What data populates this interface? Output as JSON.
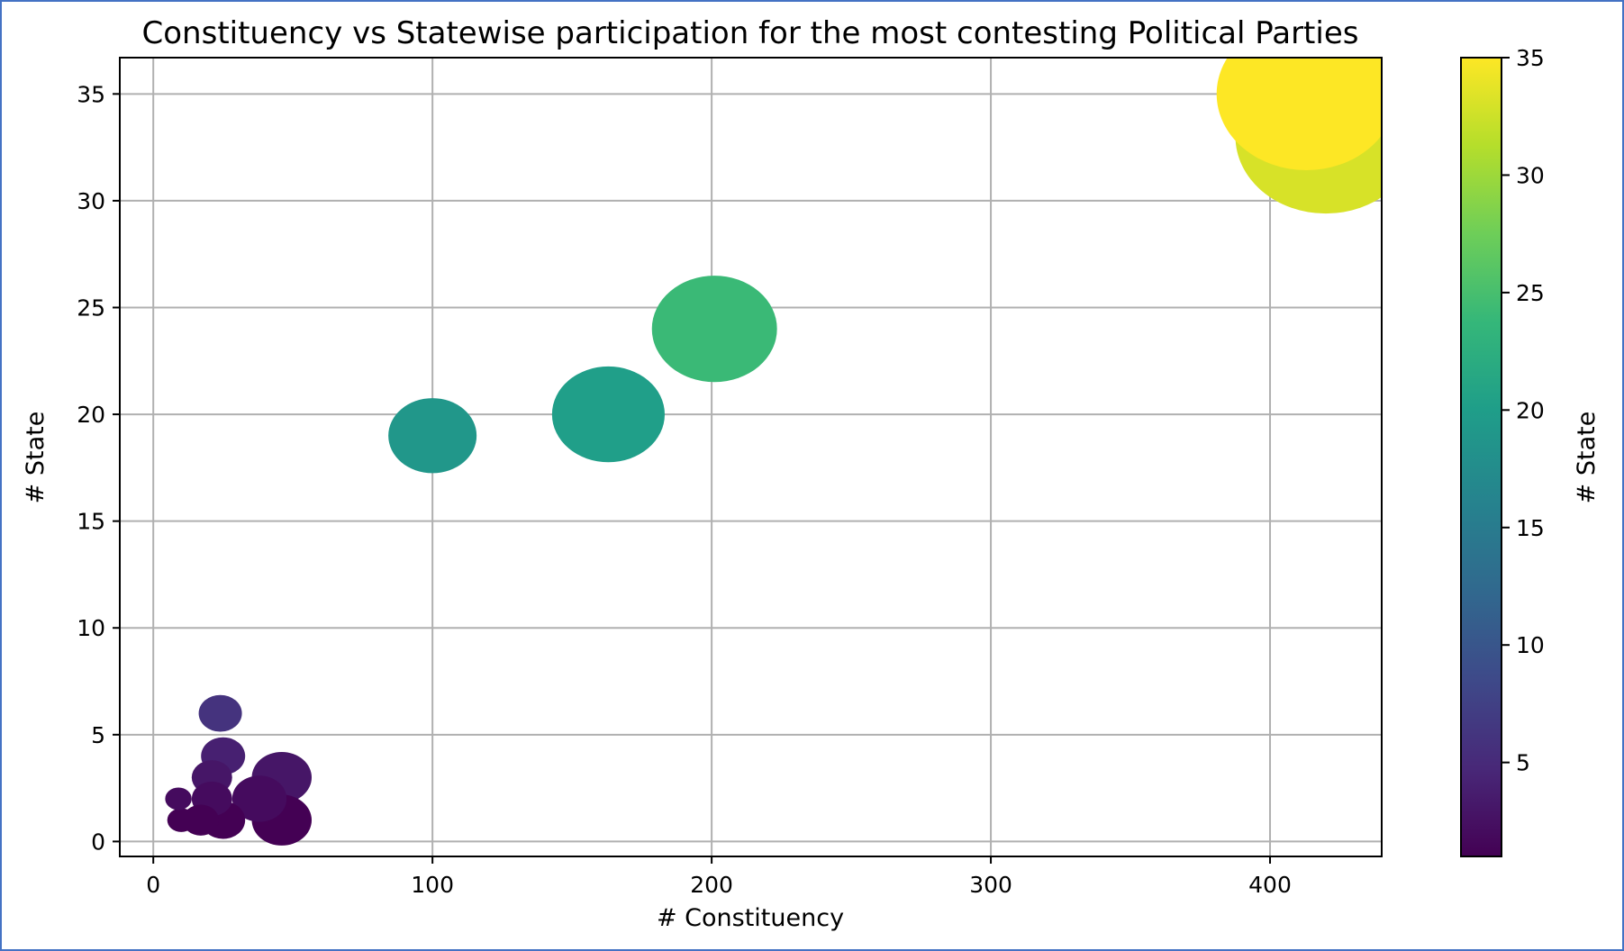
{
  "chart_data": {
    "type": "scatter",
    "title": "Constituency vs Statewise participation for the most contesting Political Parties",
    "xlabel": "# Constituency",
    "ylabel": "# State",
    "xlim": [
      -12,
      440
    ],
    "ylim": [
      -0.7,
      36.7
    ],
    "xticks": [
      0,
      100,
      200,
      300,
      400
    ],
    "yticks": [
      0,
      5,
      10,
      15,
      20,
      25,
      30,
      35
    ],
    "grid": true,
    "colormap": "viridis",
    "colorbar": {
      "label": "# State",
      "range": [
        1,
        35
      ],
      "ticks": [
        5,
        10,
        15,
        20,
        25,
        30,
        35
      ]
    },
    "points": [
      {
        "x": 420,
        "y": 33
      },
      {
        "x": 413,
        "y": 35
      },
      {
        "x": 201,
        "y": 24
      },
      {
        "x": 163,
        "y": 20
      },
      {
        "x": 100,
        "y": 19
      },
      {
        "x": 24,
        "y": 6
      },
      {
        "x": 25,
        "y": 4
      },
      {
        "x": 46,
        "y": 3
      },
      {
        "x": 21,
        "y": 3
      },
      {
        "x": 38,
        "y": 2
      },
      {
        "x": 21,
        "y": 2
      },
      {
        "x": 9,
        "y": 2
      },
      {
        "x": 46,
        "y": 1
      },
      {
        "x": 25,
        "y": 1
      },
      {
        "x": 17,
        "y": 1
      },
      {
        "x": 10,
        "y": 1
      }
    ]
  }
}
